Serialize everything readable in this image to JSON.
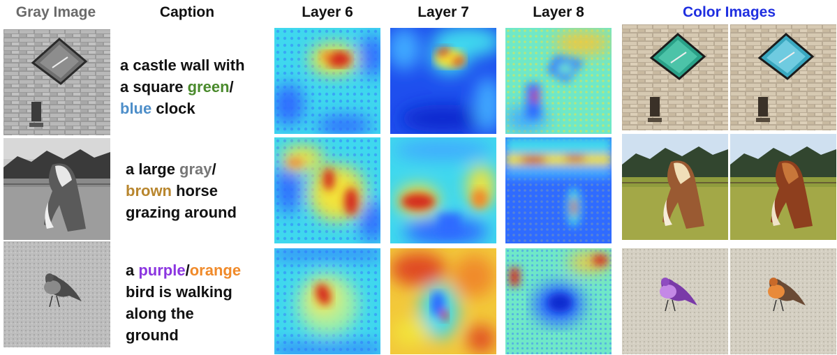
{
  "headers": {
    "gray_image": "Gray Image",
    "caption": "Caption",
    "layer6": "Layer 6",
    "layer7": "Layer 7",
    "layer8": "Layer 8",
    "color_images": "Color Images"
  },
  "header_colors": {
    "gray_image": "#6a6a6a",
    "caption": "#111111",
    "layers": "#111111",
    "color_images": "#1f2fe0"
  },
  "rows": [
    {
      "subject": "clock",
      "caption": {
        "line1": "a castle wall with",
        "line2_pre": "a square ",
        "color_a": "green",
        "slash": "/",
        "color_b": "blue",
        "line3_post": " clock"
      },
      "color_a_hex": "#4a8a2c",
      "color_b_hex": "#4d8ec9"
    },
    {
      "subject": "horse",
      "caption": {
        "line1_pre": "a large ",
        "color_a": "gray",
        "slash": "/",
        "color_b": "brown",
        "line2_post": " horse",
        "line3": "grazing around"
      },
      "color_a_hex": "#777777",
      "color_b_hex": "#b8862e"
    },
    {
      "subject": "bird",
      "caption": {
        "line1_pre": "a ",
        "color_a": "purple",
        "slash": "/",
        "color_b": "orange",
        "line2": "bird is walking",
        "line3": "along the",
        "line4": "ground"
      },
      "color_a_hex": "#8b35e0",
      "color_b_hex": "#f08a2a"
    }
  ],
  "palette": {
    "jet_deep": "#0a2ccf",
    "jet_blue": "#2f6bff",
    "jet_cyan": "#3fd8ee",
    "jet_yellow": "#f2e33a",
    "jet_red": "#d42a1c"
  }
}
